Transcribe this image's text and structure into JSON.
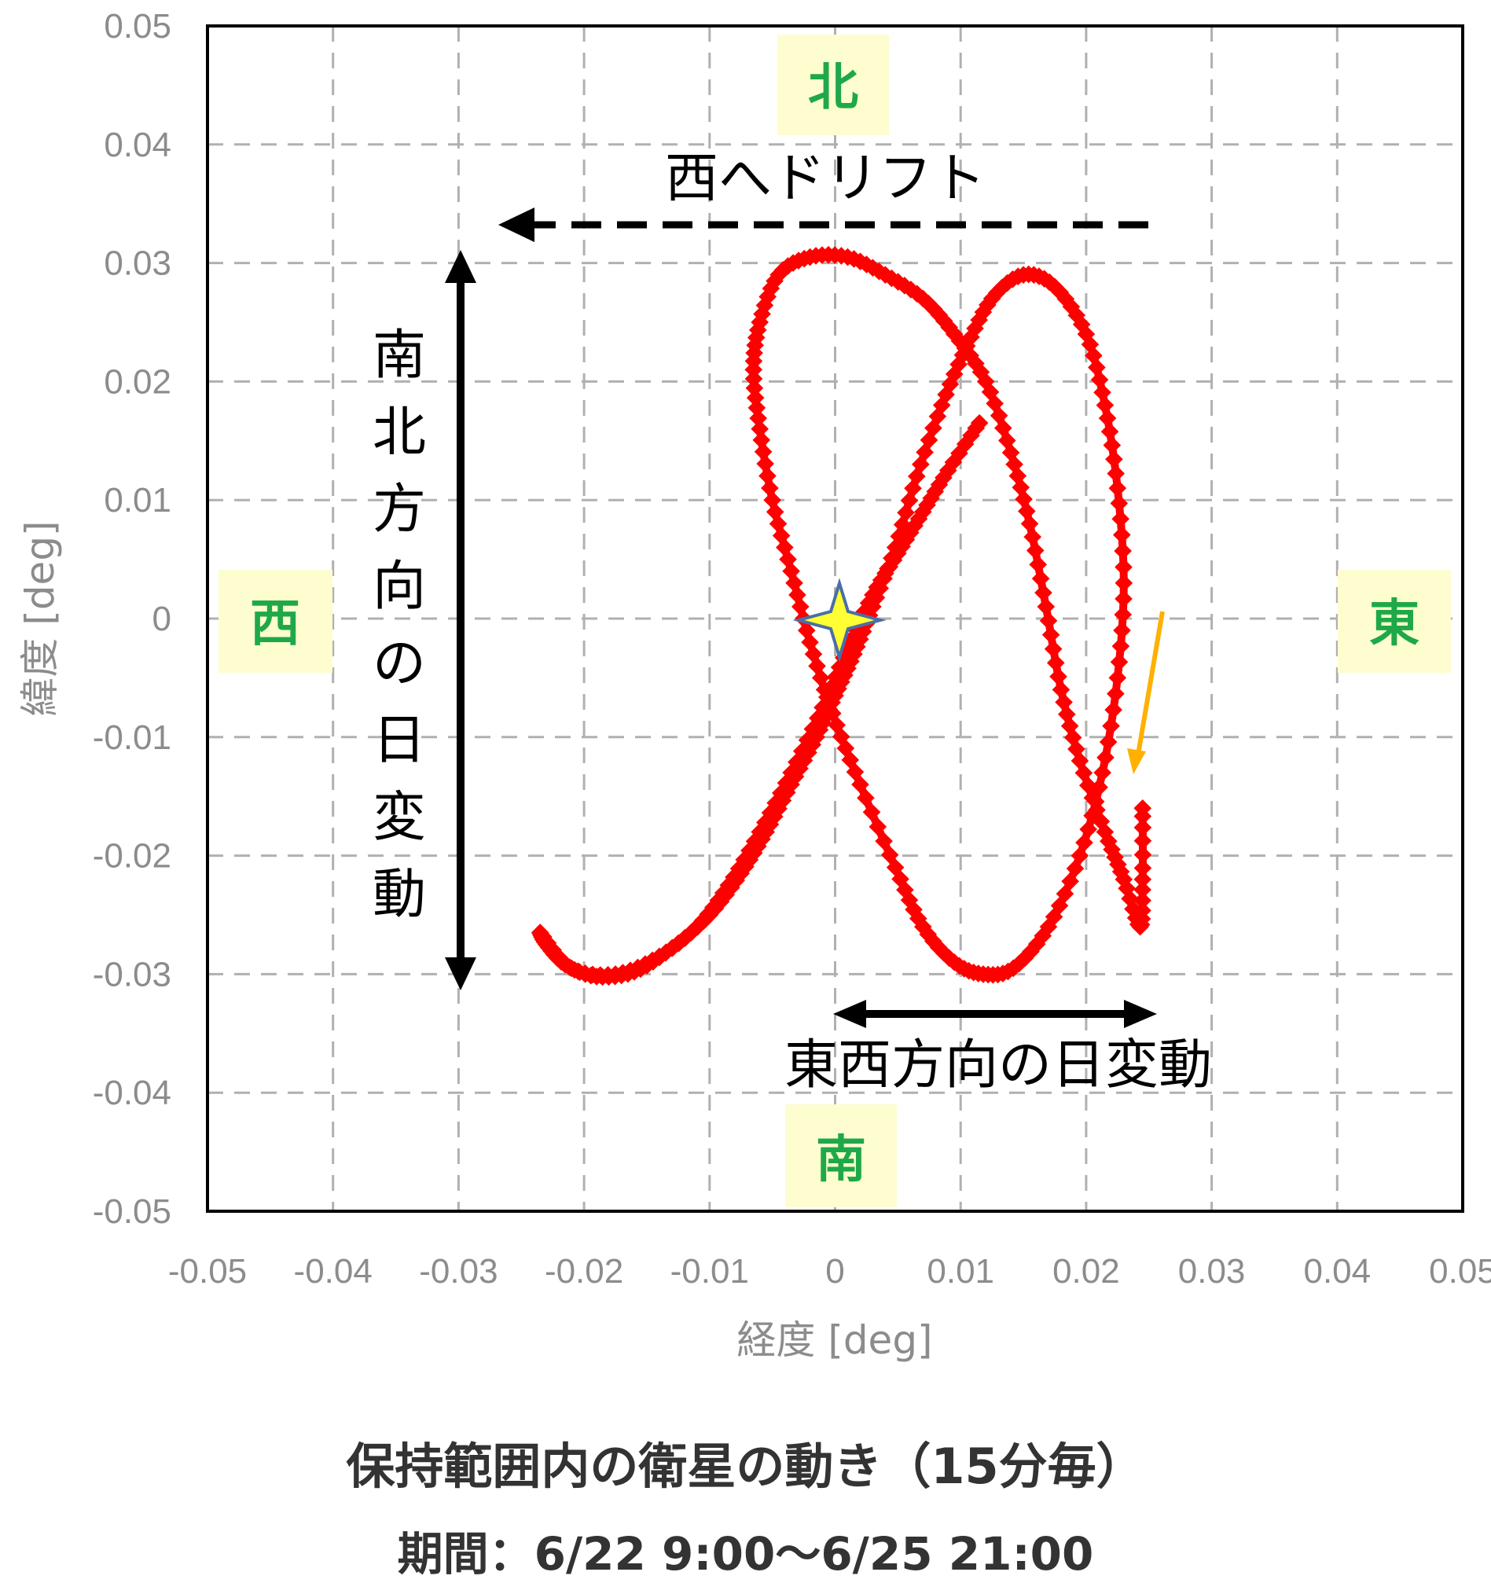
{
  "chart_data": {
    "type": "scatter",
    "title": "",
    "xlabel": "経度 [deg]",
    "ylabel": "緯度 [deg]",
    "xlim": [
      -0.05,
      0.05
    ],
    "ylim": [
      -0.05,
      0.05
    ],
    "xticks": [
      "-0.05",
      "-0.04",
      "-0.03",
      "-0.02",
      "-0.01",
      "0",
      "0.01",
      "0.02",
      "0.03",
      "0.04",
      "0.05"
    ],
    "yticks": [
      "0.05",
      "0.04",
      "0.03",
      "0.02",
      "0.01",
      "0",
      "-0.01",
      "-0.02",
      "-0.03",
      "-0.04",
      "-0.05"
    ],
    "grid": true,
    "series_color": "#ff0000",
    "trajectory": [
      [
        -0.0235,
        -0.0265
      ],
      [
        -0.023,
        -0.0275
      ],
      [
        -0.0215,
        -0.0292
      ],
      [
        -0.019,
        -0.0302
      ],
      [
        -0.016,
        -0.0298
      ],
      [
        -0.013,
        -0.0278
      ],
      [
        -0.01,
        -0.025
      ],
      [
        -0.0075,
        -0.0215
      ],
      [
        -0.0055,
        -0.018
      ],
      [
        -0.0035,
        -0.014
      ],
      [
        -0.0015,
        -0.01
      ],
      [
        0.0,
        -0.0065
      ],
      [
        0.0015,
        -0.003
      ],
      [
        0.003,
        0.001
      ],
      [
        0.0048,
        0.006
      ],
      [
        0.0065,
        0.012
      ],
      [
        0.0085,
        0.018
      ],
      [
        0.0105,
        0.023
      ],
      [
        0.0125,
        0.027
      ],
      [
        0.015,
        0.029
      ],
      [
        0.0175,
        0.028
      ],
      [
        0.02,
        0.024
      ],
      [
        0.0215,
        0.018
      ],
      [
        0.0225,
        0.011
      ],
      [
        0.023,
        0.003
      ],
      [
        0.0225,
        -0.005
      ],
      [
        0.0213,
        -0.013
      ],
      [
        0.0195,
        -0.02
      ],
      [
        0.017,
        -0.026
      ],
      [
        0.0142,
        -0.0295
      ],
      [
        0.0118,
        -0.03
      ],
      [
        0.0095,
        -0.029
      ],
      [
        0.007,
        -0.026
      ],
      [
        0.0048,
        -0.021
      ],
      [
        0.002,
        -0.014
      ],
      [
        -0.0002,
        -0.008
      ],
      [
        -0.002,
        -0.002
      ],
      [
        -0.0035,
        0.004
      ],
      [
        -0.005,
        0.01
      ],
      [
        -0.006,
        0.016
      ],
      [
        -0.0065,
        0.021
      ],
      [
        -0.006,
        0.025
      ],
      [
        -0.0045,
        0.029
      ],
      [
        -0.002,
        0.0305
      ],
      [
        0.001,
        0.0305
      ],
      [
        0.004,
        0.029
      ],
      [
        0.007,
        0.027
      ],
      [
        0.0095,
        0.024
      ],
      [
        0.012,
        0.02
      ],
      [
        0.014,
        0.014
      ],
      [
        0.0155,
        0.008
      ],
      [
        0.0168,
        0.001
      ],
      [
        0.018,
        -0.006
      ],
      [
        0.0195,
        -0.012
      ],
      [
        0.0215,
        -0.018
      ],
      [
        0.023,
        -0.022
      ],
      [
        0.0243,
        -0.026
      ],
      [
        0.0245,
        -0.022
      ],
      [
        0.0245,
        -0.016
      ]
    ],
    "trajectory2": [
      [
        -0.0235,
        -0.0265
      ],
      [
        -0.021,
        -0.0295
      ],
      [
        -0.0175,
        -0.03
      ],
      [
        -0.014,
        -0.0285
      ],
      [
        -0.011,
        -0.026
      ],
      [
        -0.0085,
        -0.0225
      ],
      [
        -0.006,
        -0.018
      ],
      [
        -0.0035,
        -0.013
      ],
      [
        -0.001,
        -0.0075
      ],
      [
        0.001,
        -0.0025
      ],
      [
        0.003,
        0.002
      ],
      [
        0.005,
        0.0055
      ],
      [
        0.007,
        0.009
      ],
      [
        0.009,
        0.0125
      ],
      [
        0.0115,
        0.0165
      ]
    ],
    "annotations": {
      "drift_label": "西へドリフト",
      "ns_label": "南北方向の日変動",
      "ew_label": "東西方向の日変動"
    },
    "directions": {
      "north": "北",
      "south": "南",
      "west": "西",
      "east": "東"
    }
  },
  "caption": {
    "title": "保持範囲内の衛星の動き（15分毎）",
    "period": "期間：6/22 9:00～6/25 21:00"
  }
}
